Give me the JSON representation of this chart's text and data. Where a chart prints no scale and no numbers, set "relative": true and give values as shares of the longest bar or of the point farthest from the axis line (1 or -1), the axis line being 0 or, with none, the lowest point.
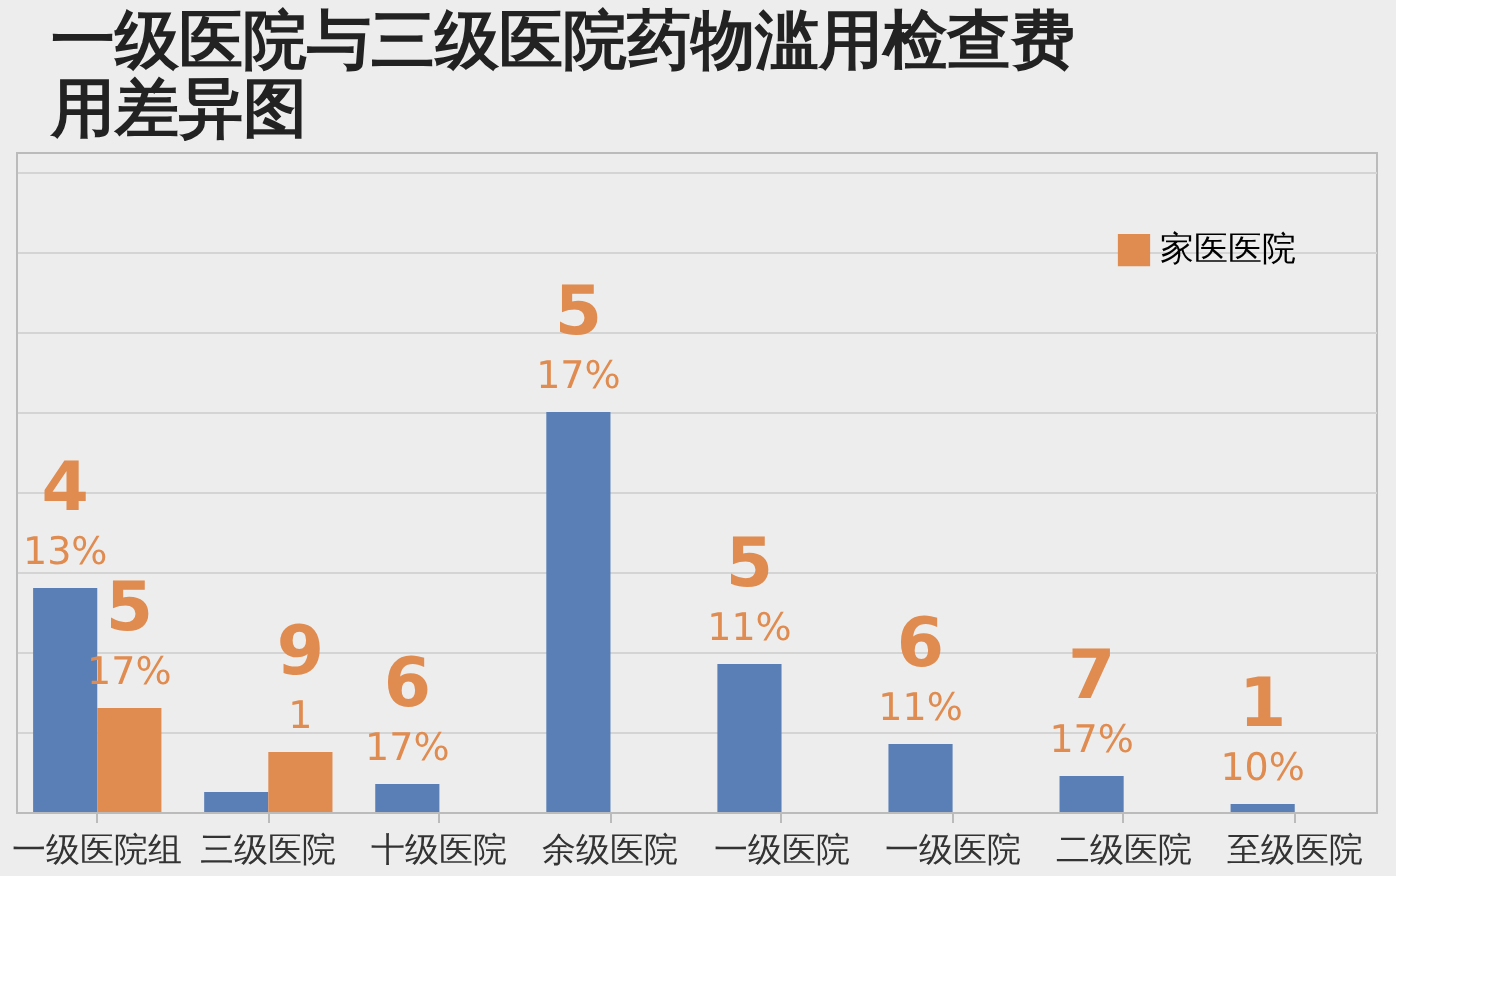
{
  "chart_data": {
    "type": "bar",
    "title": "一级医院与三级医院药物滥用检查费用差异图",
    "categories": [
      "一级医院组",
      "三级医院",
      "十级医院",
      "余级医院",
      "一级医院",
      "一级医院",
      "二级医院",
      "至级医院"
    ],
    "series": [
      {
        "color": "#5a7fb6",
        "values": [
          0.56,
          0.05,
          0.07,
          1,
          0.37,
          0.17,
          0.09,
          0.02
        ]
      },
      {
        "name": "家医医院",
        "color": "#e08b4f",
        "values": [
          0.26,
          0.15,
          null,
          null,
          null,
          null,
          null,
          null
        ]
      }
    ],
    "relative": true,
    "annotations": [
      {
        "text": "4",
        "x": "一级医院组",
        "y": 0.56
      },
      {
        "text": "13%",
        "x": "一级医院组",
        "y": 0.56
      },
      {
        "text": "5",
        "x": "一级医院组",
        "y": 0.26
      },
      {
        "text": "17%",
        "x": "一级医院组",
        "y": 0.26
      },
      {
        "text": "9",
        "x": "三级医院",
        "y": 0.15
      },
      {
        "text": "1",
        "x": "三级医院",
        "y": 0.15
      },
      {
        "text": "6",
        "x": "十级医院",
        "y": 0.07
      },
      {
        "text": "17%",
        "x": "十级医院",
        "y": 0.07
      },
      {
        "text": "5",
        "x": "余级医院",
        "y": 1
      },
      {
        "text": "17%",
        "x": "余级医院",
        "y": 1
      },
      {
        "text": "5",
        "x": "一级医院",
        "y": 0.37
      },
      {
        "text": "11%",
        "x": "一级医院",
        "y": 0.37
      },
      {
        "text": "6",
        "x": "一级医院",
        "y": 0.17
      },
      {
        "text": "11%",
        "x": "一级医院",
        "y": 0.17
      },
      {
        "text": "7",
        "x": "二级医院",
        "y": 0.09
      },
      {
        "text": "17%",
        "x": "二级医院",
        "y": 0.09
      },
      {
        "text": "1",
        "x": "至级医院",
        "y": 0.02
      },
      {
        "text": "10%",
        "x": "至级医院",
        "y": 0.02
      }
    ],
    "grid": "y",
    "legend": "top right"
  }
}
